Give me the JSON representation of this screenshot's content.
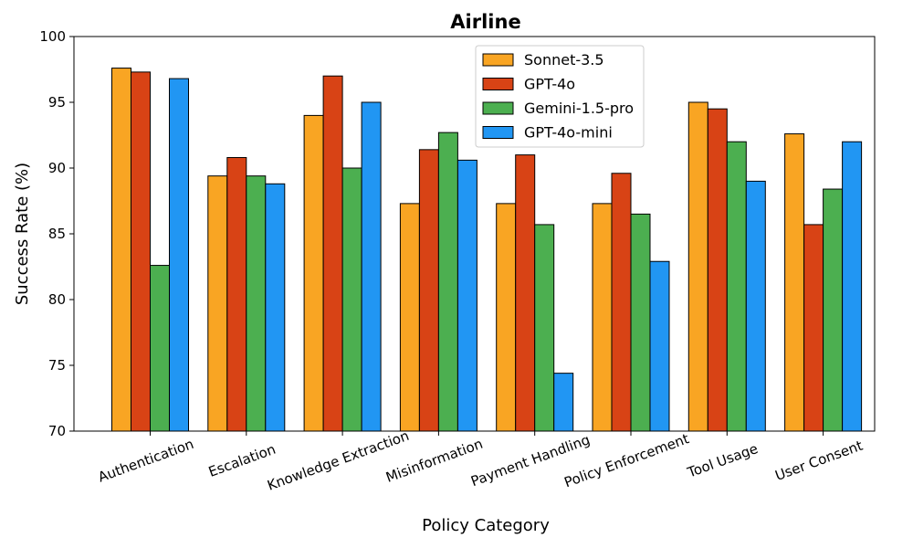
{
  "chart_data": {
    "type": "bar",
    "title": "Airline",
    "xlabel": "Policy Category",
    "ylabel": "Success Rate (%)",
    "ylim": [
      70,
      100
    ],
    "yticks": [
      70,
      75,
      80,
      85,
      90,
      95,
      100
    ],
    "grid": false,
    "legend_position": "top-center",
    "categories": [
      "Authentication",
      "Escalation",
      "Knowledge Extraction",
      "Misinformation",
      "Payment Handling",
      "Policy Enforcement",
      "Tool Usage",
      "User Consent"
    ],
    "series": [
      {
        "name": "Sonnet-3.5",
        "color": "#F9A523",
        "values": [
          97.6,
          89.4,
          94.0,
          87.3,
          87.3,
          87.3,
          95.0,
          92.6
        ]
      },
      {
        "name": "GPT-4o",
        "color": "#D84315",
        "values": [
          97.3,
          90.8,
          97.0,
          91.4,
          91.0,
          89.6,
          94.5,
          85.7
        ]
      },
      {
        "name": "Gemini-1.5-pro",
        "color": "#4CAF50",
        "values": [
          82.6,
          89.4,
          90.0,
          92.7,
          85.7,
          86.5,
          92.0,
          88.4
        ]
      },
      {
        "name": "GPT-4o-mini",
        "color": "#2196F3",
        "values": [
          96.8,
          88.8,
          95.0,
          90.6,
          74.4,
          82.9,
          89.0,
          92.0
        ]
      }
    ]
  }
}
